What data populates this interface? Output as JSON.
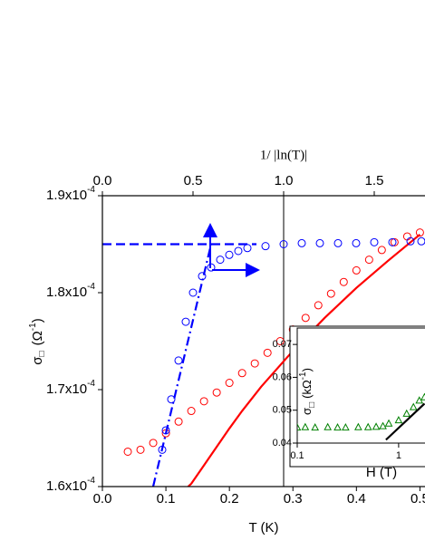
{
  "chart_data": [
    {
      "type": "scatter",
      "x_label": "T (K)",
      "x2_label": "1/ |ln(T)|",
      "y_label": {
        "symbol": "σ",
        "sub": "□",
        "unit": "(Ω",
        "sup": "-1",
        "close": ")"
      },
      "xlim": [
        0,
        0.508
      ],
      "xticks": [
        {
          "value": 0,
          "label": "0.0"
        },
        0.1,
        0.2,
        0.3,
        0.4,
        0.5
      ],
      "x2lim": [
        0,
        1.78
      ],
      "x2ticks": [
        {
          "value": 0,
          "label": "0.0"
        },
        0.5,
        {
          "value": 1,
          "label": "1.0"
        },
        1.5
      ],
      "ylim": [
        0.00016,
        0.00019
      ],
      "yticks": [
        {
          "value": 0.00016,
          "label": "1.6x10",
          "exp": "-4"
        },
        {
          "value": 0.00017,
          "label": "1.7x10",
          "exp": "-4"
        },
        {
          "value": 0.00018,
          "label": "1.8x10",
          "exp": "-4"
        },
        {
          "value": 0.00019,
          "label": "1.9x10",
          "exp": "-4"
        }
      ],
      "series": [
        {
          "style": "circle",
          "color": "#ff0000",
          "x": [
            0.04,
            0.06,
            0.08,
            0.1,
            0.12,
            0.14,
            0.16,
            0.18,
            0.2,
            0.22,
            0.24,
            0.26,
            0.28,
            0.3,
            0.32,
            0.34,
            0.36,
            0.38,
            0.4,
            0.42,
            0.44,
            0.46,
            0.48,
            0.5
          ],
          "values": [
            0.0001636,
            0.0001638,
            0.0001645,
            0.0001655,
            0.0001667,
            0.0001678,
            0.0001688,
            0.0001697,
            0.0001707,
            0.0001717,
            0.0001727,
            0.0001738,
            0.000175,
            0.0001762,
            0.0001774,
            0.0001787,
            0.0001799,
            0.0001811,
            0.0001823,
            0.0001834,
            0.0001844,
            0.0001852,
            0.0001858,
            0.0001862
          ]
        },
        {
          "style": "line",
          "color": "#ff0000",
          "x": [
            0.135,
            0.14,
            0.16,
            0.18,
            0.2,
            0.22,
            0.25,
            0.3,
            0.35,
            0.4,
            0.45,
            0.5
          ],
          "values": [
            0.00016,
            0.0001603,
            0.0001622,
            0.0001641,
            0.000166,
            0.0001678,
            0.0001703,
            0.000174,
            0.0001774,
            0.0001805,
            0.0001833,
            0.000186
          ]
        },
        {
          "style": "circle",
          "color": "#0000ff",
          "axis": "x2",
          "x": [
            0.33,
            0.35,
            0.38,
            0.42,
            0.46,
            0.5,
            0.55,
            0.6,
            0.65,
            0.7,
            0.75,
            0.8,
            0.9,
            1.0,
            1.1,
            1.2,
            1.3,
            1.4,
            1.5,
            1.6,
            1.7,
            1.76
          ],
          "values": [
            0.0001638,
            0.0001658,
            0.000169,
            0.000173,
            0.000177,
            0.00018,
            0.0001817,
            0.0001826,
            0.0001834,
            0.0001839,
            0.0001843,
            0.0001846,
            0.0001848,
            0.000185,
            0.0001851,
            0.0001851,
            0.0001851,
            0.0001851,
            0.0001852,
            0.0001852,
            0.0001853,
            0.0001853
          ]
        },
        {
          "style": "dashed",
          "color": "#0000ff",
          "axis": "x2",
          "x": [
            0,
            0.85
          ],
          "values": [
            0.000185,
            0.000185
          ]
        },
        {
          "style": "dashdot",
          "color": "#0000ff",
          "axis": "x2",
          "x": [
            0.28,
            0.6
          ],
          "values": [
            0.00016,
            0.000185
          ]
        }
      ]
    },
    {
      "type": "scatter",
      "x_label": "H (T)",
      "y_label": {
        "symbol": "σ",
        "sub": "□",
        "unit": "(kΩ",
        "sup": "-1",
        "close": ")"
      },
      "log_x": true,
      "xlim": [
        0.1,
        1.82
      ],
      "xticks": [
        0.1,
        1
      ],
      "ylim": [
        0.04,
        0.075
      ],
      "yticks": [
        0.04,
        0.05,
        0.06,
        0.07
      ],
      "series": [
        {
          "style": "triangle",
          "color": "#008000",
          "x": [
            0.1,
            0.12,
            0.15,
            0.2,
            0.25,
            0.3,
            0.4,
            0.5,
            0.6,
            0.7,
            0.8,
            1.0,
            1.2,
            1.4,
            1.6,
            1.8
          ],
          "values": [
            0.0448,
            0.0449,
            0.0448,
            0.0449,
            0.0448,
            0.0448,
            0.0449,
            0.0449,
            0.045,
            0.0452,
            0.046,
            0.047,
            0.049,
            0.051,
            0.053,
            0.054
          ]
        },
        {
          "style": "line",
          "color": "#000000",
          "x": [
            0.75,
            1.8
          ],
          "values": [
            0.041,
            0.052
          ]
        }
      ]
    }
  ]
}
